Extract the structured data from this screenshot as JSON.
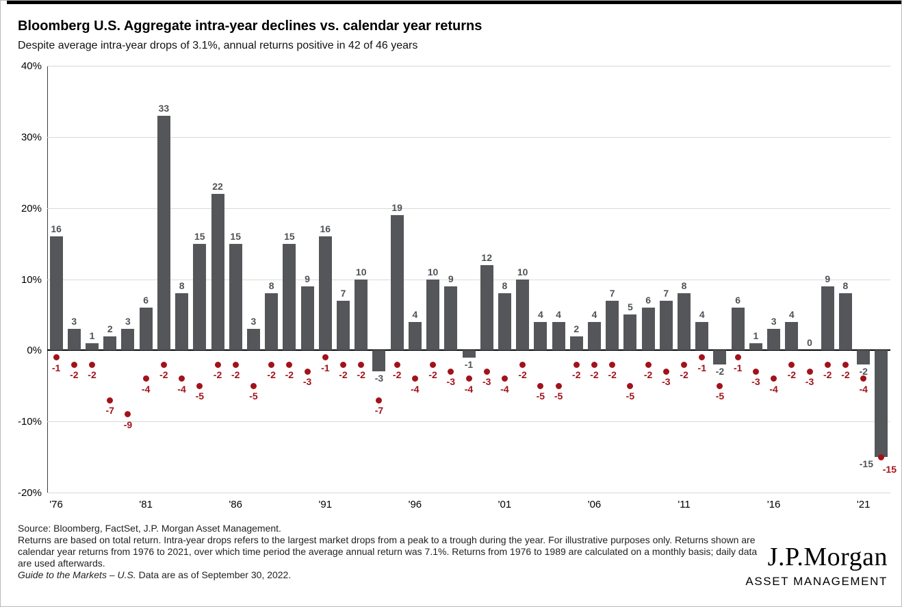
{
  "chart_data": {
    "type": "bar",
    "title": "Bloomberg U.S. Aggregate intra-year declines vs. calendar year returns",
    "subtitle": "Despite average intra-year drops of 3.1%, annual returns positive in 42 of 46 years",
    "years": [
      1976,
      1977,
      1978,
      1979,
      1980,
      1981,
      1982,
      1983,
      1984,
      1985,
      1986,
      1987,
      1988,
      1989,
      1990,
      1991,
      1992,
      1993,
      1994,
      1995,
      1996,
      1997,
      1998,
      1999,
      2000,
      2001,
      2002,
      2003,
      2004,
      2005,
      2006,
      2007,
      2008,
      2009,
      2010,
      2011,
      2012,
      2013,
      2014,
      2015,
      2016,
      2017,
      2018,
      2019,
      2020,
      2021,
      2022
    ],
    "series": [
      {
        "name": "Calendar year return",
        "type": "bar",
        "color": "#54565A",
        "values": [
          16,
          3,
          1,
          2,
          3,
          6,
          33,
          8,
          15,
          22,
          15,
          3,
          8,
          15,
          9,
          16,
          7,
          10,
          -3,
          19,
          4,
          10,
          9,
          -1,
          12,
          8,
          10,
          4,
          4,
          2,
          4,
          7,
          5,
          6,
          7,
          8,
          4,
          -2,
          6,
          1,
          3,
          4,
          0,
          9,
          8,
          -2,
          -15
        ]
      },
      {
        "name": "Intra-year decline",
        "type": "scatter",
        "color": "#A2121A",
        "values": [
          -1,
          -2,
          -2,
          -7,
          -9,
          -4,
          -2,
          -4,
          -5,
          -2,
          -2,
          -5,
          -2,
          -2,
          -3,
          -1,
          -2,
          -2,
          -7,
          -2,
          -4,
          -2,
          -3,
          -4,
          -3,
          -4,
          -2,
          -5,
          -5,
          -2,
          -2,
          -2,
          -5,
          -2,
          -3,
          -2,
          -1,
          -5,
          -1,
          -3,
          -4,
          -2,
          -3,
          -2,
          -2,
          -4,
          -15
        ]
      }
    ],
    "ylim": [
      -20,
      40
    ],
    "yticks": {
      "values": [
        40,
        30,
        20,
        10,
        0,
        -10,
        -20
      ],
      "labels": [
        "40%",
        "30%",
        "20%",
        "10%",
        "0%",
        "-10%",
        "-20%"
      ]
    },
    "xticks": {
      "indices": [
        0,
        5,
        10,
        15,
        20,
        25,
        30,
        35,
        40,
        45
      ],
      "labels": [
        "'76",
        "'81",
        "'86",
        "'91",
        "'96",
        "'01",
        "'06",
        "'11",
        "'16",
        "'21"
      ]
    },
    "grid": "horizontal",
    "legend": "none"
  },
  "footer": {
    "source_line": "Source: Bloomberg, FactSet, J.P. Morgan Asset Management.",
    "note": "Returns are based on total return. Intra-year drops refers to the largest market drops from a peak to a trough during the year. For illustrative purposes only. Returns shown are calendar year returns from 1976 to 2021, over which time period the average annual return was 7.1%. Returns from 1976 to 1989 are calculated on a monthly basis; daily data are used afterwards.",
    "gtm_italic": "Guide to the Markets – U.S.",
    "gtm_rest": " Data are as of September 30, 2022."
  },
  "logo": {
    "name": "J.P.Morgan",
    "sub": "ASSET MANAGEMENT"
  }
}
